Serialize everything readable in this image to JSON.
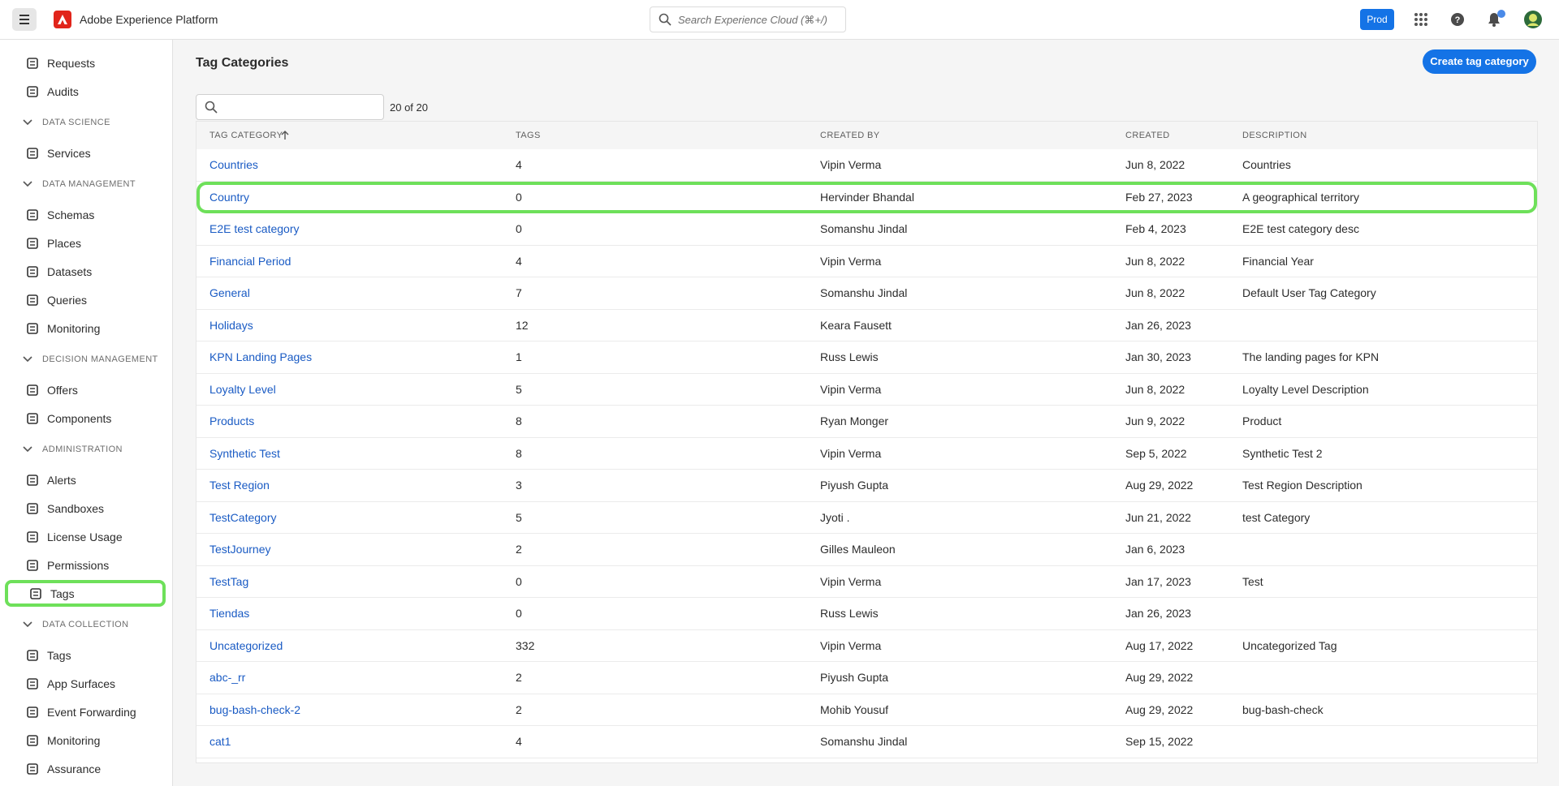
{
  "header": {
    "product": "Adobe Experience Platform",
    "search_placeholder": "Search Experience Cloud (⌘+/)",
    "environment": "Prod"
  },
  "sidebar": {
    "items": [
      {
        "label": "Requests"
      },
      {
        "label": "Audits"
      },
      {
        "section": "DATA SCIENCE"
      },
      {
        "label": "Services"
      },
      {
        "section": "DATA MANAGEMENT"
      },
      {
        "label": "Schemas"
      },
      {
        "label": "Places"
      },
      {
        "label": "Datasets"
      },
      {
        "label": "Queries"
      },
      {
        "label": "Monitoring"
      },
      {
        "section": "DECISION MANAGEMENT"
      },
      {
        "label": "Offers"
      },
      {
        "label": "Components"
      },
      {
        "section": "ADMINISTRATION"
      },
      {
        "label": "Alerts"
      },
      {
        "label": "Sandboxes"
      },
      {
        "label": "License Usage"
      },
      {
        "label": "Permissions"
      },
      {
        "label": "Tags",
        "selected": true
      },
      {
        "section": "DATA COLLECTION"
      },
      {
        "label": "Tags"
      },
      {
        "label": "App Surfaces"
      },
      {
        "label": "Event Forwarding"
      },
      {
        "label": "Monitoring"
      },
      {
        "label": "Assurance"
      }
    ]
  },
  "main": {
    "title": "Tag Categories",
    "create_button": "Create tag category",
    "count": "20 of 20"
  },
  "table": {
    "columns": [
      "TAG CATEGORY",
      "TAGS",
      "CREATED BY",
      "CREATED",
      "DESCRIPTION"
    ],
    "highlighted_row": 1,
    "rows": [
      [
        "Countries",
        "4",
        "Vipin Verma",
        "Jun 8, 2022",
        "Countries"
      ],
      [
        "Country",
        "0",
        "Hervinder Bhandal",
        "Feb 27, 2023",
        "A geographical territory"
      ],
      [
        "E2E test category",
        "0",
        "Somanshu Jindal",
        "Feb 4, 2023",
        "E2E test category desc"
      ],
      [
        "Financial Period",
        "4",
        "Vipin Verma",
        "Jun 8, 2022",
        "Financial Year"
      ],
      [
        "General",
        "7",
        "Somanshu Jindal",
        "Jun 8, 2022",
        "Default User Tag Category"
      ],
      [
        "Holidays",
        "12",
        "Keara Fausett",
        "Jan 26, 2023",
        null
      ],
      [
        "KPN Landing Pages",
        "1",
        "Russ Lewis",
        "Jan 30, 2023",
        "The landing pages for KPN"
      ],
      [
        "Loyalty Level",
        "5",
        "Vipin Verma",
        "Jun 8, 2022",
        "Loyalty Level Description"
      ],
      [
        "Products",
        "8",
        "Ryan Monger",
        "Jun 9, 2022",
        "Product"
      ],
      [
        "Synthetic Test",
        "8",
        "Vipin Verma",
        "Sep 5, 2022",
        "Synthetic Test 2"
      ],
      [
        "Test Region",
        "3",
        "Piyush Gupta",
        "Aug 29, 2022",
        "Test Region Description"
      ],
      [
        "TestCategory",
        "5",
        "Jyoti .",
        "Jun 21, 2022",
        "test Category"
      ],
      [
        "TestJourney",
        "2",
        "Gilles Mauleon",
        "Jan 6, 2023",
        null
      ],
      [
        "TestTag",
        "0",
        "Vipin Verma",
        "Jan 17, 2023",
        "Test"
      ],
      [
        "Tiendas",
        "0",
        "Russ Lewis",
        "Jan 26, 2023",
        null
      ],
      [
        "Uncategorized",
        "332",
        "Vipin Verma",
        "Aug 17, 2022",
        "Uncategorized Tag"
      ],
      [
        "abc-_rr",
        "2",
        "Piyush Gupta",
        "Aug 29, 2022",
        null
      ],
      [
        "bug-bash-check-2",
        "2",
        "Mohib Yousuf",
        "Aug 29, 2022",
        "bug-bash-check"
      ],
      [
        "cat1",
        "4",
        "Somanshu Jindal",
        "Sep 15, 2022",
        null
      ]
    ]
  }
}
